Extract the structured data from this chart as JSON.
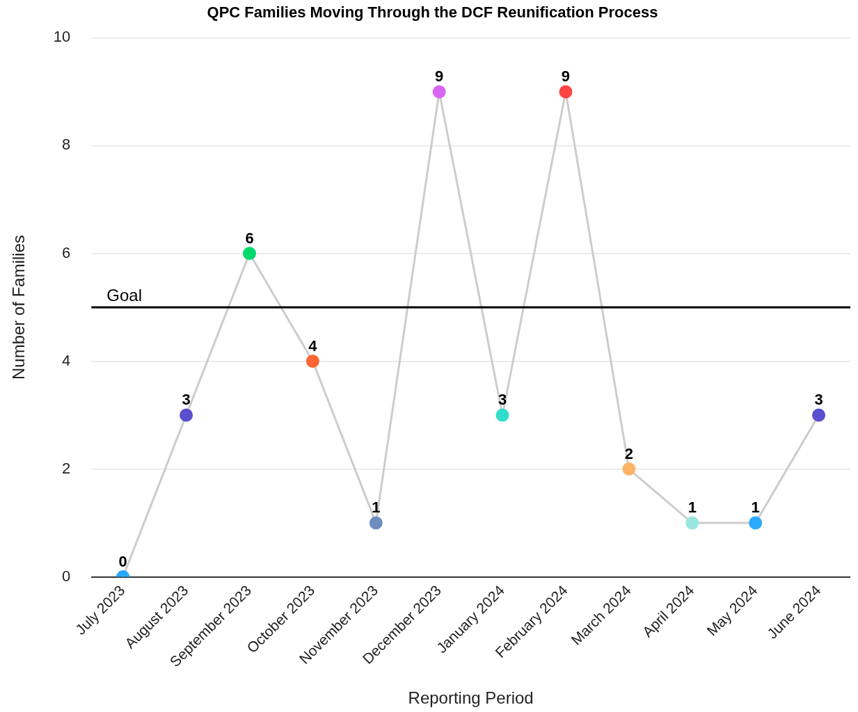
{
  "chart_data": {
    "type": "line",
    "title": "QPC Families Moving Through the DCF Reunification Process",
    "xlabel": "Reporting Period",
    "ylabel": "Number of Families",
    "categories": [
      "July 2023",
      "August 2023",
      "September 2023",
      "October 2023",
      "November 2023",
      "December 2023",
      "January 2024",
      "February 2024",
      "March 2024",
      "April 2024",
      "May 2024",
      "June 2024"
    ],
    "series": [
      {
        "color": "#cccccc",
        "colors": [
          "#29aaff",
          "#5a4fcf",
          "#00d96b",
          "#ff6633",
          "#6f8ec0",
          "#d966f2",
          "#33ddcc",
          "#ff4444",
          "#ffb366",
          "#99e6e0",
          "#29aaff",
          "#5a4fcf"
        ],
        "values": [
          0,
          3,
          6,
          4,
          1,
          9,
          3,
          9,
          2,
          1,
          1,
          3
        ]
      }
    ],
    "ylim": [
      0,
      10
    ],
    "yticks": [
      0,
      2,
      4,
      6,
      8,
      10
    ],
    "grid": "y",
    "marker": "circle",
    "data_labels": true,
    "ref_lines": [
      {
        "axis": "y",
        "value": 5,
        "label": "Goal",
        "color": "#000000"
      }
    ]
  }
}
